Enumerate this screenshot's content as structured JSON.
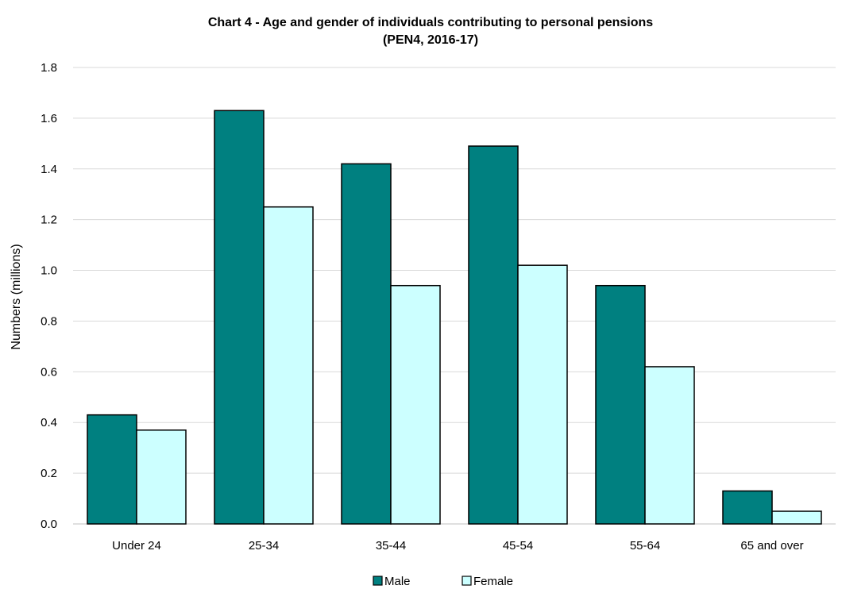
{
  "chart_data": {
    "type": "bar",
    "title": "Chart 4 - Age and gender of individuals contributing to personal pensions",
    "subtitle": "(PEN4, 2016-17)",
    "xlabel": "",
    "ylabel": "Numbers (millions)",
    "ylim": [
      0,
      1.8
    ],
    "ytick_step": 0.2,
    "yticks": [
      "0.0",
      "0.2",
      "0.4",
      "0.6",
      "0.8",
      "1.0",
      "1.2",
      "1.4",
      "1.6",
      "1.8"
    ],
    "grid": true,
    "legend_position": "bottom",
    "categories": [
      "Under 24",
      "25-34",
      "35-44",
      "45-54",
      "55-64",
      "65 and over"
    ],
    "series": [
      {
        "name": "Male",
        "color": "#008080",
        "values": [
          0.43,
          1.63,
          1.42,
          1.49,
          0.94,
          0.13
        ]
      },
      {
        "name": "Female",
        "color": "#ccffff",
        "values": [
          0.37,
          1.25,
          0.94,
          1.02,
          0.62,
          0.05
        ]
      }
    ]
  }
}
